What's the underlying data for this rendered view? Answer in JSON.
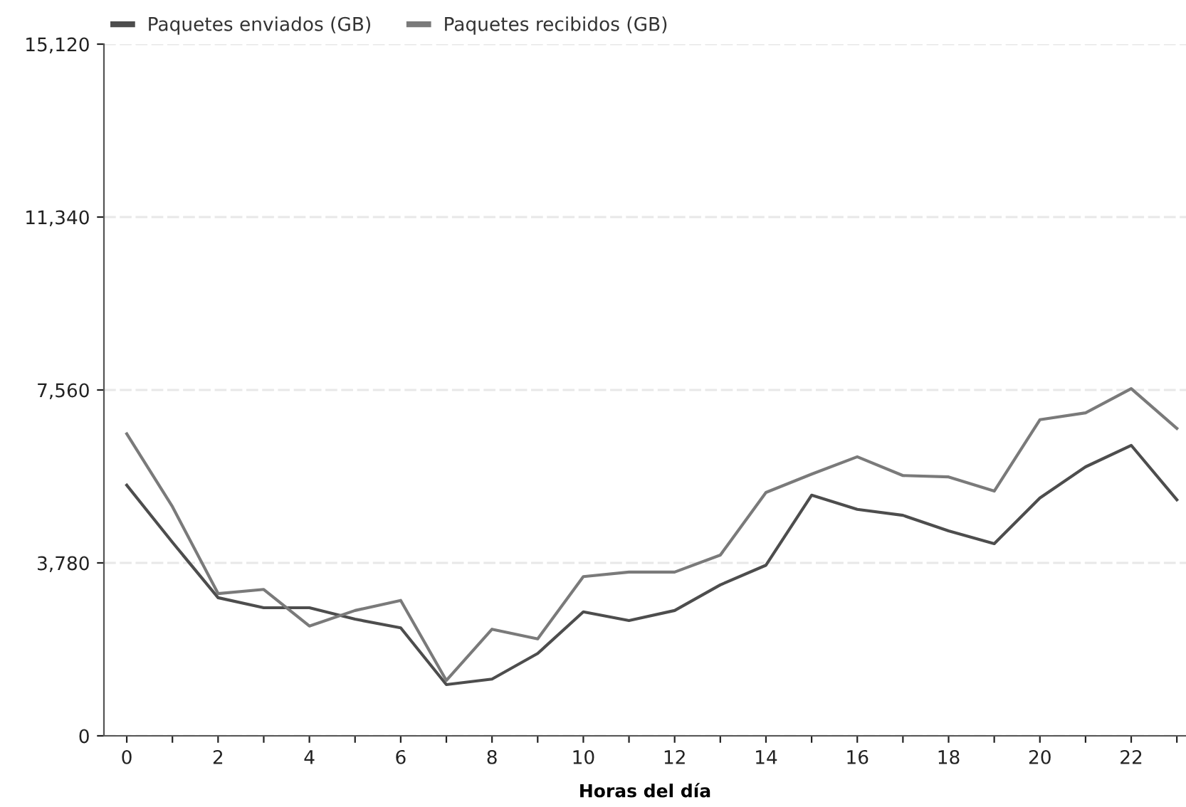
{
  "chart_data": {
    "type": "line",
    "xlabel": "Horas del día",
    "x": [
      0,
      1,
      2,
      3,
      4,
      5,
      6,
      7,
      8,
      9,
      10,
      11,
      12,
      13,
      14,
      15,
      16,
      17,
      18,
      19,
      20,
      21,
      22,
      23
    ],
    "series": [
      {
        "name": "Paquetes enviados (GB)",
        "color": "#4d4d4d",
        "values": [
          5480,
          4230,
          3020,
          2800,
          2800,
          2550,
          2360,
          1120,
          1240,
          1800,
          2710,
          2520,
          2740,
          3300,
          3730,
          5260,
          4950,
          4820,
          4480,
          4200,
          5200,
          5880,
          6350,
          5160
        ]
      },
      {
        "name": "Paquetes recibidos (GB)",
        "color": "#7a7a7a",
        "values": [
          6600,
          5010,
          3110,
          3200,
          2400,
          2740,
          2960,
          1210,
          2330,
          2120,
          3480,
          3580,
          3580,
          3950,
          5320,
          5720,
          6100,
          5690,
          5660,
          5350,
          6910,
          7060,
          7590,
          6720
        ]
      }
    ],
    "xlim": [
      -0.5,
      23.2
    ],
    "xticks": [
      0,
      {
        "value": 1,
        "label": null
      },
      2,
      {
        "value": 3,
        "label": null
      },
      4,
      {
        "value": 5,
        "label": null
      },
      6,
      {
        "value": 7,
        "label": null
      },
      8,
      {
        "value": 9,
        "label": null
      },
      10,
      {
        "value": 11,
        "label": null
      },
      12,
      {
        "value": 13,
        "label": null
      },
      14,
      {
        "value": 15,
        "label": null
      },
      16,
      {
        "value": 17,
        "label": null
      },
      18,
      {
        "value": 19,
        "label": null
      },
      20,
      {
        "value": 21,
        "label": null
      },
      22,
      {
        "value": 23,
        "label": null
      }
    ],
    "ylim": [
      0,
      15120
    ],
    "yticks": [
      0,
      {
        "value": 3780,
        "label": "3,780"
      },
      {
        "value": 7560,
        "label": "7,560"
      },
      {
        "value": 11340,
        "label": "11,340"
      },
      {
        "value": 15120,
        "label": "15,120"
      }
    ],
    "grid": "y",
    "legend": "top left",
    "marker": "none",
    "line_style": "solid"
  }
}
